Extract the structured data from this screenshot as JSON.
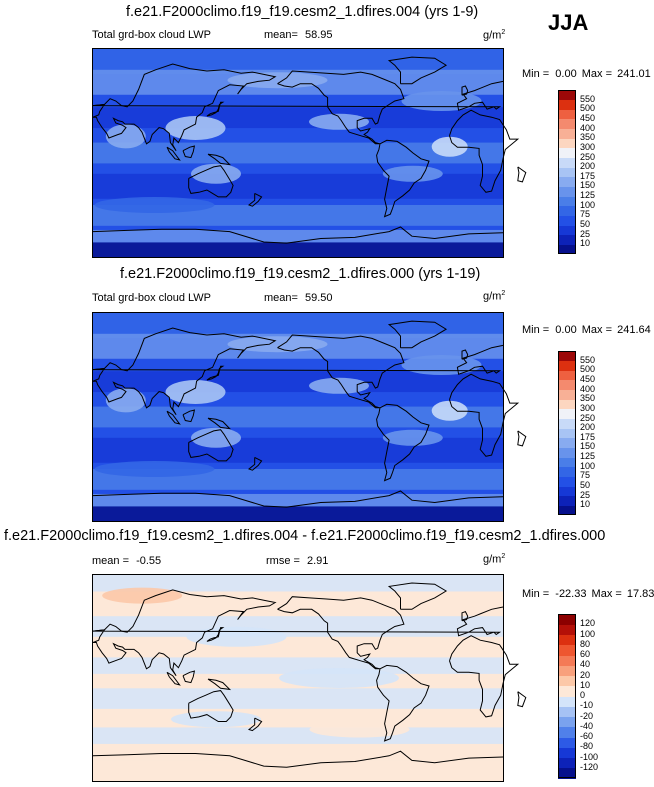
{
  "season": "JJA",
  "panels": [
    {
      "title": "f.e21.F2000climo.f19_f19.cesm2_1.dfires.004 (yrs 1-9)",
      "left_label": "Total grd-box cloud LWP",
      "mean_label": "mean=",
      "mean_value": "58.95",
      "units_base": "g/m",
      "units_exp": "2",
      "min_label": "Min =",
      "min_value": "0.00",
      "max_label": "Max =",
      "max_value": "241.01"
    },
    {
      "title": "f.e21.F2000climo.f19_f19.cesm2_1.dfires.000 (yrs 1-19)",
      "left_label": "Total grd-box cloud LWP",
      "mean_label": "mean=",
      "mean_value": "59.50",
      "units_base": "g/m",
      "units_exp": "2",
      "min_label": "Min =",
      "min_value": "0.00",
      "max_label": "Max =",
      "max_value": "241.64"
    },
    {
      "title": "f.e21.F2000climo.f19_f19.cesm2_1.dfires.004 - f.e21.F2000climo.f19_f19.cesm2_1.dfires.000",
      "mean_label": "mean =",
      "mean_value": "-0.55",
      "rmse_label": "rmse =",
      "rmse_value": "2.91",
      "units_base": "g/m",
      "units_exp": "2",
      "min_label": "Min =",
      "min_value": "-22.33",
      "max_label": "Max =",
      "max_value": "17.83"
    }
  ],
  "chart_data": [
    {
      "type": "heatmap",
      "projection": "cylindrical-equidistant, Pacific-centered",
      "title": "f.e21.F2000climo.f19_f19.cesm2_1.dfires.004 (yrs 1-9)",
      "variable": "Total grd-box cloud LWP",
      "mean": 58.95,
      "min": 0.0,
      "max": 241.01,
      "colorbar_levels": [
        10,
        25,
        50,
        75,
        100,
        125,
        150,
        175,
        200,
        250,
        300,
        350,
        400,
        450,
        500,
        550
      ],
      "colorbar_colors": [
        "#06108c",
        "#0d22b8",
        "#1638d6",
        "#2350e6",
        "#3366e6",
        "#4a7ee8",
        "#6893ec",
        "#88abf0",
        "#a8c4f4",
        "#c8daf8",
        "#f0f2f8",
        "#fcd6c0",
        "#f8b096",
        "#f48a6e",
        "#ee6040",
        "#dc3010",
        "#9c0808"
      ],
      "legend": "right"
    },
    {
      "type": "heatmap",
      "projection": "cylindrical-equidistant, Pacific-centered",
      "title": "f.e21.F2000climo.f19_f19.cesm2_1.dfires.000 (yrs 1-19)",
      "variable": "Total grd-box cloud LWP",
      "mean": 59.5,
      "min": 0.0,
      "max": 241.64,
      "colorbar_levels": [
        10,
        25,
        50,
        75,
        100,
        125,
        150,
        175,
        200,
        250,
        300,
        350,
        400,
        450,
        500,
        550
      ],
      "colorbar_colors": [
        "#06108c",
        "#0d22b8",
        "#1638d6",
        "#2350e6",
        "#3366e6",
        "#4a7ee8",
        "#6893ec",
        "#88abf0",
        "#a8c4f4",
        "#c8daf8",
        "#f0f2f8",
        "#fcd6c0",
        "#f8b096",
        "#f48a6e",
        "#ee6040",
        "#dc3010",
        "#9c0808"
      ],
      "legend": "right"
    },
    {
      "type": "heatmap",
      "projection": "cylindrical-equidistant, Pacific-centered",
      "title": "f.e21.F2000climo.f19_f19.cesm2_1.dfires.004 - f.e21.F2000climo.f19_f19.cesm2_1.dfires.000",
      "mean": -0.55,
      "rmse": 2.91,
      "min": -22.33,
      "max": 17.83,
      "colorbar_levels": [
        -120,
        -100,
        -80,
        -60,
        -40,
        -20,
        -10,
        0,
        10,
        20,
        40,
        60,
        80,
        100,
        120
      ],
      "colorbar_colors": [
        "#06108c",
        "#0d22b8",
        "#1638d6",
        "#2d5ae6",
        "#5080ea",
        "#7aa2ee",
        "#a6c2f4",
        "#d4e4fa",
        "#fde8d8",
        "#fcc8a8",
        "#f8a07c",
        "#f47a56",
        "#ee5630",
        "#dc3010",
        "#b41008",
        "#8c0000"
      ],
      "legend": "right"
    }
  ]
}
